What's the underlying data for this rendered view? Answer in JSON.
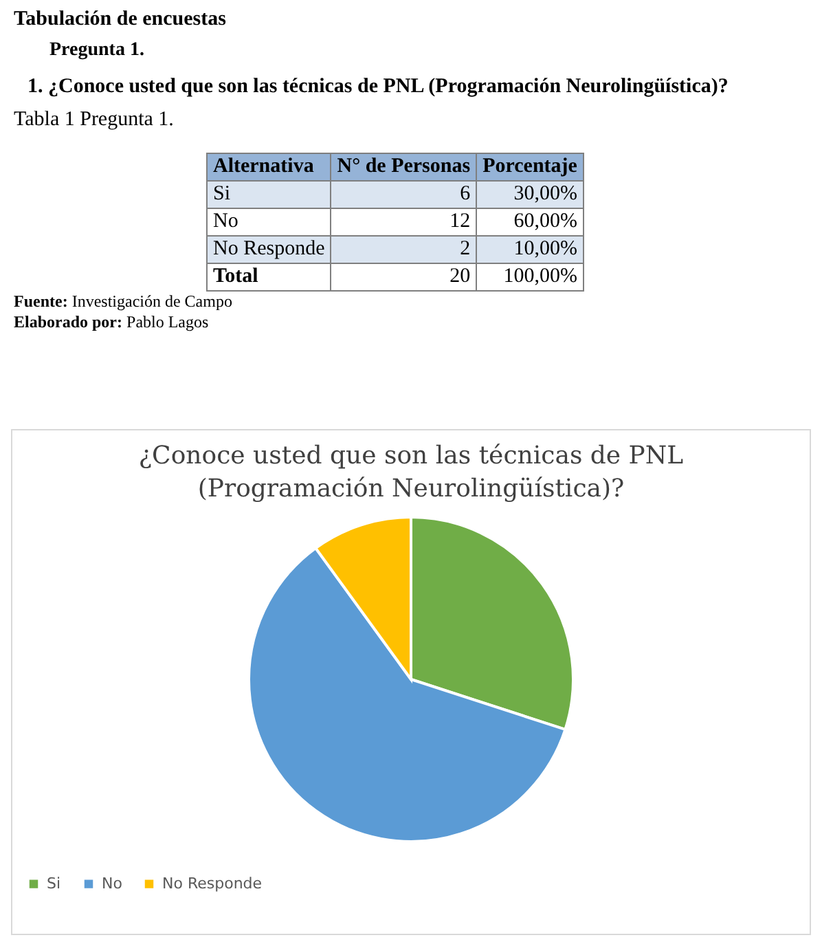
{
  "chart_data": {
    "type": "pie",
    "title": "¿Conoce usted que son las técnicas de PNL\n(Programación  Neurolingüística)?",
    "categories": [
      "Si",
      "No",
      "No Responde"
    ],
    "values": [
      30,
      60,
      10
    ],
    "colors": [
      "#70ad47",
      "#5b9bd5",
      "#ffc000"
    ],
    "legend": "bottom",
    "annotations": [
      "Tabulación de encuestas",
      "Pregunta 1.",
      "1. ¿Conoce usted que son las técnicas de PNL (Programación Neurolingüística)?",
      "Tabla 1 Pregunta 1.",
      "Alternativa",
      "N° de Personas",
      "Porcentaje",
      "6",
      "30,00%",
      "12",
      "60,00%",
      "2",
      "10,00%",
      "Total",
      "20",
      "100,00%",
      "Fuente: Investigación de Campo",
      "Elaborado por: Pablo Lagos"
    ]
  }
}
